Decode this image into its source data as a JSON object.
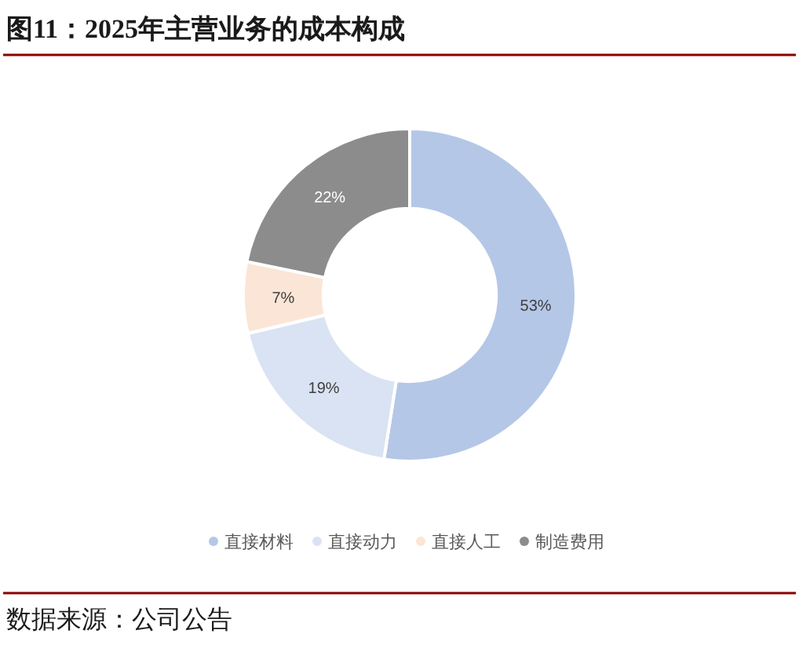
{
  "chart_data": {
    "type": "donut",
    "title": "图11：2025年主营业务的成本构成",
    "categories": [
      "直接材料",
      "直接动力",
      "直接人工",
      "制造费用"
    ],
    "values": [
      53,
      19,
      7,
      22
    ],
    "colors": [
      "#b4c7e7",
      "#dae3f3",
      "#fbe5d6",
      "#8c8c8c"
    ],
    "value_labels": [
      "53%",
      "19%",
      "7%",
      "22%"
    ],
    "legend": "bottom",
    "annotations": [
      "数据来源：公司公告"
    ]
  }
}
